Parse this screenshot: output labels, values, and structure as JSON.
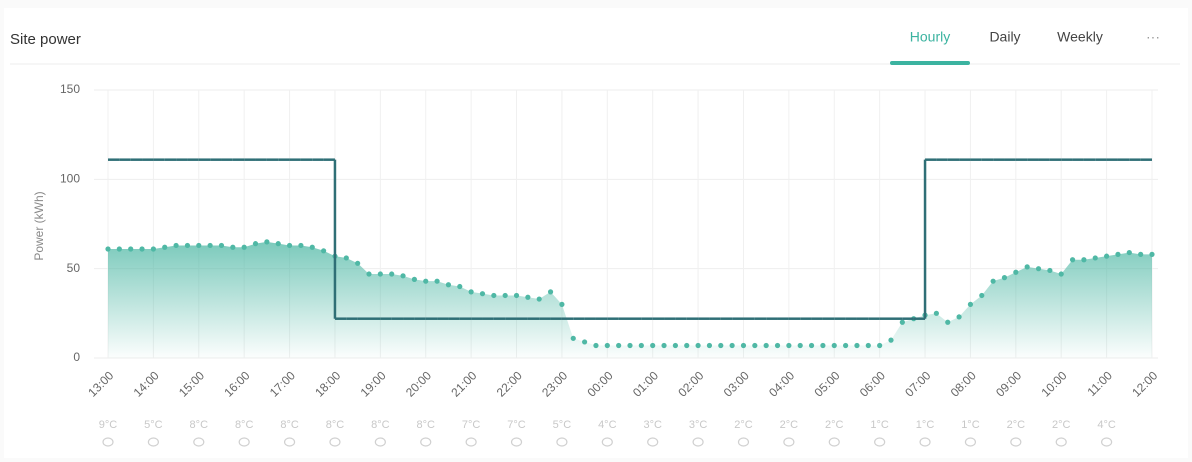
{
  "header": {
    "title": "Site power",
    "tabs": [
      "Hourly",
      "Daily",
      "Weekly"
    ],
    "active_tab": 0,
    "menu": "···"
  },
  "chart_data": {
    "type": "line",
    "y_label": "Power (kWh)",
    "categories": [
      "13:00",
      null,
      null,
      null,
      "14:00",
      null,
      null,
      null,
      "15:00",
      null,
      null,
      null,
      "16:00",
      null,
      null,
      null,
      "17:00",
      null,
      null,
      null,
      "18:00",
      null,
      null,
      null,
      "19:00",
      null,
      null,
      null,
      "20:00",
      null,
      null,
      null,
      "21:00",
      null,
      null,
      null,
      "22:00",
      null,
      null,
      null,
      "23:00",
      null,
      null,
      null,
      "00:00",
      null,
      null,
      null,
      "01:00",
      null,
      null,
      null,
      "02:00",
      null,
      null,
      null,
      "03:00",
      null,
      null,
      null,
      "04:00",
      null,
      null,
      null,
      "05:00",
      null,
      null,
      null,
      "06:00",
      null,
      null,
      null,
      "07:00",
      null,
      null,
      null,
      "08:00",
      null,
      null,
      null,
      "09:00",
      null,
      null,
      null,
      "10:00",
      null,
      null,
      null,
      "11:00",
      null,
      null,
      null,
      "12:00"
    ],
    "series": [
      {
        "style": "step",
        "color": "#2f6f76",
        "values": [
          111,
          111,
          111,
          111,
          111,
          111,
          111,
          111,
          111,
          111,
          111,
          111,
          111,
          111,
          111,
          111,
          111,
          111,
          111,
          111,
          22,
          22,
          22,
          22,
          22,
          22,
          22,
          22,
          22,
          22,
          22,
          22,
          22,
          22,
          22,
          22,
          22,
          22,
          22,
          22,
          22,
          22,
          22,
          22,
          22,
          22,
          22,
          22,
          22,
          22,
          22,
          22,
          22,
          22,
          22,
          22,
          22,
          22,
          22,
          22,
          22,
          22,
          22,
          22,
          22,
          22,
          22,
          22,
          22,
          22,
          22,
          22,
          111,
          111,
          111,
          111,
          111,
          111,
          111,
          111,
          111,
          111,
          111,
          111,
          111,
          111,
          111,
          111,
          111,
          111,
          111,
          111,
          111
        ]
      },
      {
        "style": "dotted-area",
        "color": "#4fb8a5",
        "values": [
          61,
          61,
          61,
          61,
          61,
          62,
          63,
          63,
          63,
          63,
          63,
          62,
          62,
          64,
          65,
          64,
          63,
          63,
          62,
          60,
          57,
          56,
          53,
          47,
          47,
          47,
          46,
          44,
          43,
          43,
          41,
          40,
          37,
          36,
          35,
          35,
          35,
          34,
          33,
          37,
          30,
          11,
          9,
          7,
          7,
          7,
          7,
          7,
          7,
          7,
          7,
          7,
          7,
          7,
          7,
          7,
          7,
          7,
          7,
          7,
          7,
          7,
          7,
          7,
          7,
          7,
          7,
          7,
          7,
          10,
          20,
          22,
          24,
          25,
          20,
          23,
          30,
          35,
          43,
          45,
          48,
          51,
          50,
          49,
          47,
          55,
          55,
          56,
          57,
          58,
          59,
          58,
          58
        ]
      }
    ],
    "temperatures": [
      "9°C",
      "5°C",
      "8°C",
      "8°C",
      "8°C",
      "8°C",
      "8°C",
      "8°C",
      "7°C",
      "7°C",
      "5°C",
      "4°C",
      "3°C",
      "3°C",
      "2°C",
      "2°C",
      "2°C",
      "1°C",
      "1°C",
      "1°C",
      "2°C",
      "2°C",
      "4°C"
    ],
    "ylim": [
      0,
      150
    ],
    "yticks": [
      0,
      50,
      100,
      150
    ],
    "grid": true
  }
}
